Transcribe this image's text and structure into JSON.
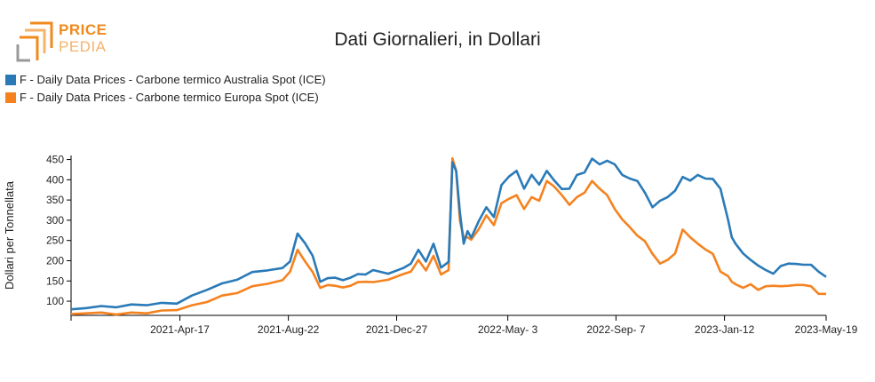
{
  "logo": {
    "line1": "PRICE",
    "line2": "PEDIA"
  },
  "chart_data": {
    "type": "line",
    "title": "Dati Giornalieri, in Dollari",
    "xlabel": "",
    "ylabel": "Dollari per Tonnellata",
    "ylim": [
      65,
      460
    ],
    "y_ticks": [
      100,
      150,
      200,
      250,
      300,
      350,
      400,
      450
    ],
    "x_ticks": [
      "2021-Apr-17",
      "2021-Aug-22",
      "2021-Dec-27",
      "2022-May- 3",
      "2022-Sep- 7",
      "2023-Jan-12",
      "2023-May-19"
    ],
    "x_tick_positions": [
      0.1441,
      0.2878,
      0.4312,
      0.5784,
      0.7217,
      0.8654,
      1.0
    ],
    "legend_position": "top-left",
    "series": [
      {
        "name": "F - Daily Data Prices - Carbone termico Australia Spot (ICE)",
        "color": "#2a7ab8",
        "x": [
          0,
          0.02,
          0.04,
          0.06,
          0.08,
          0.1,
          0.12,
          0.14,
          0.16,
          0.18,
          0.2,
          0.22,
          0.24,
          0.26,
          0.28,
          0.29,
          0.3,
          0.31,
          0.32,
          0.33,
          0.34,
          0.35,
          0.36,
          0.37,
          0.38,
          0.39,
          0.4,
          0.42,
          0.44,
          0.45,
          0.46,
          0.47,
          0.48,
          0.49,
          0.5,
          0.505,
          0.51,
          0.515,
          0.52,
          0.525,
          0.53,
          0.54,
          0.55,
          0.56,
          0.57,
          0.58,
          0.59,
          0.6,
          0.61,
          0.62,
          0.63,
          0.64,
          0.65,
          0.66,
          0.67,
          0.68,
          0.69,
          0.7,
          0.71,
          0.72,
          0.73,
          0.74,
          0.75,
          0.76,
          0.77,
          0.78,
          0.79,
          0.8,
          0.81,
          0.82,
          0.83,
          0.84,
          0.85,
          0.86,
          0.87,
          0.875,
          0.88,
          0.89,
          0.9,
          0.91,
          0.92,
          0.93,
          0.94,
          0.95,
          0.96,
          0.97,
          0.98,
          0.99,
          1.0
        ],
        "y": [
          80,
          85,
          86,
          87,
          90,
          92,
          94,
          96,
          112,
          130,
          142,
          155,
          170,
          178,
          180,
          200,
          265,
          245,
          210,
          150,
          155,
          160,
          150,
          160,
          165,
          168,
          175,
          170,
          180,
          195,
          225,
          200,
          240,
          185,
          195,
          445,
          420,
          320,
          240,
          275,
          255,
          300,
          330,
          310,
          385,
          410,
          420,
          380,
          410,
          390,
          420,
          400,
          375,
          380,
          410,
          420,
          450,
          440,
          445,
          440,
          410,
          405,
          395,
          370,
          330,
          350,
          355,
          375,
          405,
          400,
          410,
          405,
          400,
          380,
          300,
          260,
          240,
          220,
          200,
          190,
          175,
          170,
          185,
          195,
          190,
          192,
          188,
          175,
          160
        ]
      },
      {
        "name": "F - Daily Data Prices - Carbone termico Europa Spot (ICE)",
        "color": "#f5821f",
        "x": [
          0,
          0.02,
          0.04,
          0.06,
          0.08,
          0.1,
          0.12,
          0.14,
          0.16,
          0.18,
          0.2,
          0.22,
          0.24,
          0.26,
          0.28,
          0.29,
          0.3,
          0.31,
          0.32,
          0.33,
          0.34,
          0.35,
          0.36,
          0.37,
          0.38,
          0.39,
          0.4,
          0.42,
          0.44,
          0.45,
          0.46,
          0.47,
          0.48,
          0.49,
          0.5,
          0.505,
          0.51,
          0.515,
          0.52,
          0.525,
          0.53,
          0.54,
          0.55,
          0.56,
          0.57,
          0.58,
          0.59,
          0.6,
          0.61,
          0.62,
          0.63,
          0.64,
          0.65,
          0.66,
          0.67,
          0.68,
          0.69,
          0.7,
          0.71,
          0.72,
          0.73,
          0.74,
          0.75,
          0.76,
          0.77,
          0.78,
          0.79,
          0.8,
          0.81,
          0.82,
          0.83,
          0.84,
          0.85,
          0.86,
          0.87,
          0.875,
          0.88,
          0.89,
          0.9,
          0.91,
          0.92,
          0.93,
          0.94,
          0.95,
          0.96,
          0.97,
          0.98,
          0.99,
          1.0
        ],
        "y": [
          68,
          72,
          70,
          69,
          70,
          72,
          75,
          80,
          88,
          100,
          112,
          122,
          135,
          145,
          150,
          175,
          225,
          200,
          170,
          135,
          138,
          140,
          132,
          140,
          145,
          150,
          145,
          155,
          165,
          175,
          200,
          178,
          210,
          168,
          175,
          455,
          420,
          300,
          255,
          260,
          250,
          280,
          310,
          290,
          340,
          355,
          360,
          330,
          355,
          350,
          395,
          385,
          360,
          340,
          355,
          370,
          395,
          380,
          360,
          330,
          300,
          285,
          260,
          250,
          215,
          195,
          200,
          220,
          275,
          260,
          240,
          230,
          215,
          175,
          160,
          150,
          140,
          135,
          140,
          130,
          135,
          140,
          135,
          140,
          138,
          142,
          135,
          120,
          118
        ]
      }
    ]
  }
}
